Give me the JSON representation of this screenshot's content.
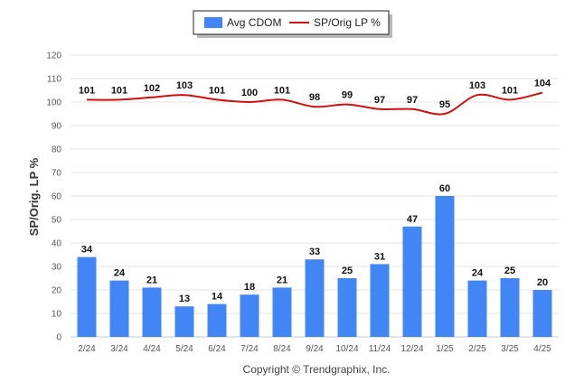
{
  "chart_data": {
    "type": "bar",
    "title": "",
    "xlabel": "",
    "ylabel": "SP/Orig. LP %",
    "ylim": [
      0,
      120
    ],
    "yticks": [
      0,
      10,
      20,
      30,
      40,
      50,
      60,
      70,
      80,
      90,
      100,
      110,
      120
    ],
    "grid": true,
    "legend_position": "top-center",
    "categories": [
      "2/24",
      "3/24",
      "4/24",
      "5/24",
      "6/24",
      "7/24",
      "8/24",
      "9/24",
      "10/24",
      "11/24",
      "12/24",
      "1/25",
      "2/25",
      "3/25",
      "4/25"
    ],
    "series": [
      {
        "name": "Avg CDOM",
        "kind": "bar",
        "color": "#4285f4",
        "values": [
          34,
          24,
          21,
          13,
          14,
          18,
          21,
          33,
          25,
          31,
          47,
          60,
          24,
          25,
          20
        ]
      },
      {
        "name": "SP/Orig LP %",
        "kind": "line",
        "color": "#cc1111",
        "values": [
          101,
          101,
          102,
          103,
          101,
          100,
          101,
          98,
          99,
          97,
          97,
          95,
          103,
          101,
          104
        ]
      }
    ]
  },
  "footer": {
    "copyright": "Copyright © Trendgraphix, Inc."
  }
}
